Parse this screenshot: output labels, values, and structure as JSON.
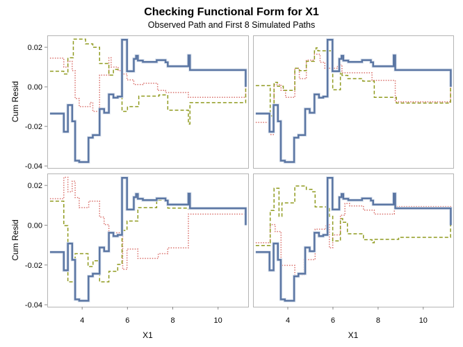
{
  "chart_data": {
    "type": "line",
    "title": "Checking Functional Form for X1",
    "subtitle": "Observed Path and First 8 Simulated Paths",
    "xlabel": "X1",
    "ylabel": "Cum Resid",
    "xlim": [
      2.46,
      11.33
    ],
    "ylim": [
      -0.041,
      0.026
    ],
    "xticks": [
      4,
      6,
      8,
      10
    ],
    "xtick_labels": [
      "4",
      "6",
      "8",
      "10"
    ],
    "yticks": [
      0.02,
      0.0,
      -0.02,
      -0.04
    ],
    "ytick_labels": [
      "0.02",
      "0.00",
      "-0.02",
      "-0.04"
    ],
    "grid": false,
    "layout": "2x2 panels",
    "colors": {
      "observed": "#5b76a3",
      "simulated_1": "#d9706b",
      "simulated_2": "#8f9a1e",
      "frame": "#b4b4b4"
    },
    "observed": [
      [
        2.58,
        -0.0135
      ],
      [
        3.19,
        -0.0227
      ],
      [
        3.37,
        -0.0092
      ],
      [
        3.56,
        -0.0174
      ],
      [
        3.69,
        -0.0373
      ],
      [
        3.87,
        -0.038
      ],
      [
        4.28,
        -0.0257
      ],
      [
        4.47,
        -0.0244
      ],
      [
        4.77,
        -0.0112
      ],
      [
        4.97,
        -0.0131
      ],
      [
        5.18,
        -0.0038
      ],
      [
        5.38,
        -0.0055
      ],
      [
        5.57,
        -0.0049
      ],
      [
        5.76,
        0.0238
      ],
      [
        5.98,
        0.0079
      ],
      [
        6.28,
        0.0141
      ],
      [
        6.38,
        0.0157
      ],
      [
        6.46,
        0.0133
      ],
      [
        6.68,
        0.0126
      ],
      [
        7.29,
        0.0135
      ],
      [
        7.68,
        0.0124
      ],
      [
        7.78,
        0.0104
      ],
      [
        8.69,
        0.0159
      ],
      [
        8.76,
        0.0085
      ],
      [
        11.22,
        0.0
      ]
    ],
    "panels": [
      {
        "simulated": [
          {
            "style": "dotted",
            "points": [
              [
                2.58,
                0.0145
              ],
              [
                3.19,
                0.01
              ],
              [
                3.37,
                0.0129
              ],
              [
                3.56,
                0.0082
              ],
              [
                3.69,
                -0.0059
              ],
              [
                3.87,
                -0.01
              ],
              [
                4.35,
                -0.0079
              ],
              [
                4.47,
                -0.0124
              ],
              [
                4.77,
                0.0059
              ],
              [
                5.18,
                0.0147
              ],
              [
                5.28,
                0.01
              ],
              [
                5.59,
                0.0082
              ],
              [
                5.79,
                0.0065
              ],
              [
                5.98,
                0.0035
              ],
              [
                6.28,
                0.0012
              ],
              [
                6.68,
                0.0018
              ],
              [
                7.33,
                -0.0018
              ],
              [
                7.68,
                -0.0029
              ],
              [
                8.69,
                -0.0053
              ],
              [
                11.22,
                0.0
              ]
            ]
          },
          {
            "style": "dashed",
            "points": [
              [
                2.58,
                0.0079
              ],
              [
                3.19,
                0.0065
              ],
              [
                3.37,
                0.0147
              ],
              [
                3.61,
                0.0241
              ],
              [
                4.15,
                0.0217
              ],
              [
                4.47,
                0.02
              ],
              [
                4.77,
                0.0118
              ],
              [
                5.18,
                0.0059
              ],
              [
                5.38,
                0.0088
              ],
              [
                5.76,
                -0.0124
              ],
              [
                6.0,
                -0.01
              ],
              [
                6.5,
                -0.0047
              ],
              [
                7.39,
                -0.0041
              ],
              [
                7.78,
                -0.0118
              ],
              [
                8.69,
                -0.0188
              ],
              [
                8.76,
                -0.008
              ],
              [
                11.22,
                0.0
              ]
            ]
          }
        ]
      },
      {
        "simulated": [
          {
            "style": "dotted",
            "points": [
              [
                2.58,
                -0.018
              ],
              [
                3.22,
                -0.0241
              ],
              [
                3.39,
                0.0011
              ],
              [
                3.7,
                -0.0018
              ],
              [
                3.9,
                -0.0053
              ],
              [
                4.31,
                0.0094
              ],
              [
                4.51,
                0.0041
              ],
              [
                4.82,
                0.0135
              ],
              [
                5.18,
                0.0165
              ],
              [
                5.43,
                0.0124
              ],
              [
                5.64,
                0.0094
              ],
              [
                6.2,
                0.0111
              ],
              [
                6.4,
                0.0071
              ],
              [
                7.73,
                0.0033
              ],
              [
                8.76,
                -0.0076
              ],
              [
                11.21,
                0.0
              ]
            ]
          },
          {
            "style": "dashed",
            "points": [
              [
                2.58,
                0.0006
              ],
              [
                3.22,
                -0.0147
              ],
              [
                3.39,
                0.0023
              ],
              [
                3.54,
                0.0003
              ],
              [
                3.8,
                -0.0018
              ],
              [
                4.31,
                0.0094
              ],
              [
                4.51,
                0.0082
              ],
              [
                4.82,
                0.0129
              ],
              [
                5.18,
                0.0182
              ],
              [
                5.25,
                0.0197
              ],
              [
                5.33,
                0.0182
              ],
              [
                5.99,
                -0.0015
              ],
              [
                6.33,
                0.0076
              ],
              [
                6.4,
                0.0058
              ],
              [
                6.66,
                0.0041
              ],
              [
                7.32,
                0.0029
              ],
              [
                7.83,
                -0.0053
              ],
              [
                8.81,
                -0.0082
              ],
              [
                11.21,
                0.0
              ]
            ]
          }
        ]
      },
      {
        "simulated": [
          {
            "style": "dotted",
            "points": [
              [
                2.58,
                0.0133
              ],
              [
                3.19,
                0.0241
              ],
              [
                3.37,
                0.0168
              ],
              [
                3.56,
                0.0221
              ],
              [
                3.69,
                0.0139
              ],
              [
                3.87,
                0.0088
              ],
              [
                4.29,
                0.0121
              ],
              [
                4.77,
                0.0041
              ],
              [
                4.97,
                0.0003
              ],
              [
                5.18,
                -0.0038
              ],
              [
                5.79,
                -0.0222
              ],
              [
                5.98,
                -0.012
              ],
              [
                6.46,
                -0.0167
              ],
              [
                7.36,
                -0.0143
              ],
              [
                7.78,
                -0.0114
              ],
              [
                8.69,
                0.0056
              ],
              [
                11.19,
                0.0
              ]
            ]
          },
          {
            "style": "dashed",
            "points": [
              [
                2.58,
                0.0121
              ],
              [
                3.19,
                -0.0002
              ],
              [
                3.37,
                -0.0285
              ],
              [
                3.69,
                -0.0143
              ],
              [
                4.26,
                -0.0208
              ],
              [
                4.48,
                -0.0179
              ],
              [
                4.77,
                -0.0285
              ],
              [
                5.18,
                -0.0232
              ],
              [
                5.57,
                -0.0197
              ],
              [
                5.76,
                -0.0026
              ],
              [
                5.98,
                0.0021
              ],
              [
                6.46,
                0.0088
              ],
              [
                7.29,
                0.0127
              ],
              [
                7.78,
                0.0086
              ],
              [
                8.69,
                0.0082
              ],
              [
                11.19,
                0.0
              ]
            ]
          }
        ]
      },
      {
        "simulated": [
          {
            "style": "dotted",
            "points": [
              [
                2.58,
                -0.0088
              ],
              [
                3.22,
                0.0003
              ],
              [
                3.44,
                -0.0032
              ],
              [
                3.7,
                -0.0202
              ],
              [
                4.31,
                -0.025
              ],
              [
                4.72,
                -0.0173
              ],
              [
                5.21,
                -0.002
              ],
              [
                5.69,
                0.0003
              ],
              [
                5.84,
                -0.0114
              ],
              [
                5.99,
                -0.0049
              ],
              [
                6.33,
                0.005
              ],
              [
                6.53,
                0.0109
              ],
              [
                6.74,
                0.0097
              ],
              [
                7.35,
                0.0076
              ],
              [
                7.83,
                0.0056
              ],
              [
                8.72,
                0.0094
              ],
              [
                11.21,
                0.0
              ]
            ]
          },
          {
            "style": "dashed",
            "points": [
              [
                2.58,
                -0.0102
              ],
              [
                3.22,
                0.0074
              ],
              [
                3.39,
                0.0186
              ],
              [
                3.61,
                0.0045
              ],
              [
                3.74,
                0.0112
              ],
              [
                4.31,
                0.0197
              ],
              [
                4.82,
                0.018
              ],
              [
                5.07,
                0.0168
              ],
              [
                5.21,
                0.0092
              ],
              [
                5.84,
                0.0045
              ],
              [
                5.99,
                -0.0079
              ],
              [
                6.33,
                0.0033
              ],
              [
                6.43,
                0.0015
              ],
              [
                6.64,
                -0.0043
              ],
              [
                7.35,
                -0.0073
              ],
              [
                7.73,
                -0.0088
              ],
              [
                7.83,
                -0.0071
              ],
              [
                8.91,
                -0.0061
              ],
              [
                11.21,
                0.0
              ]
            ]
          }
        ]
      }
    ]
  }
}
